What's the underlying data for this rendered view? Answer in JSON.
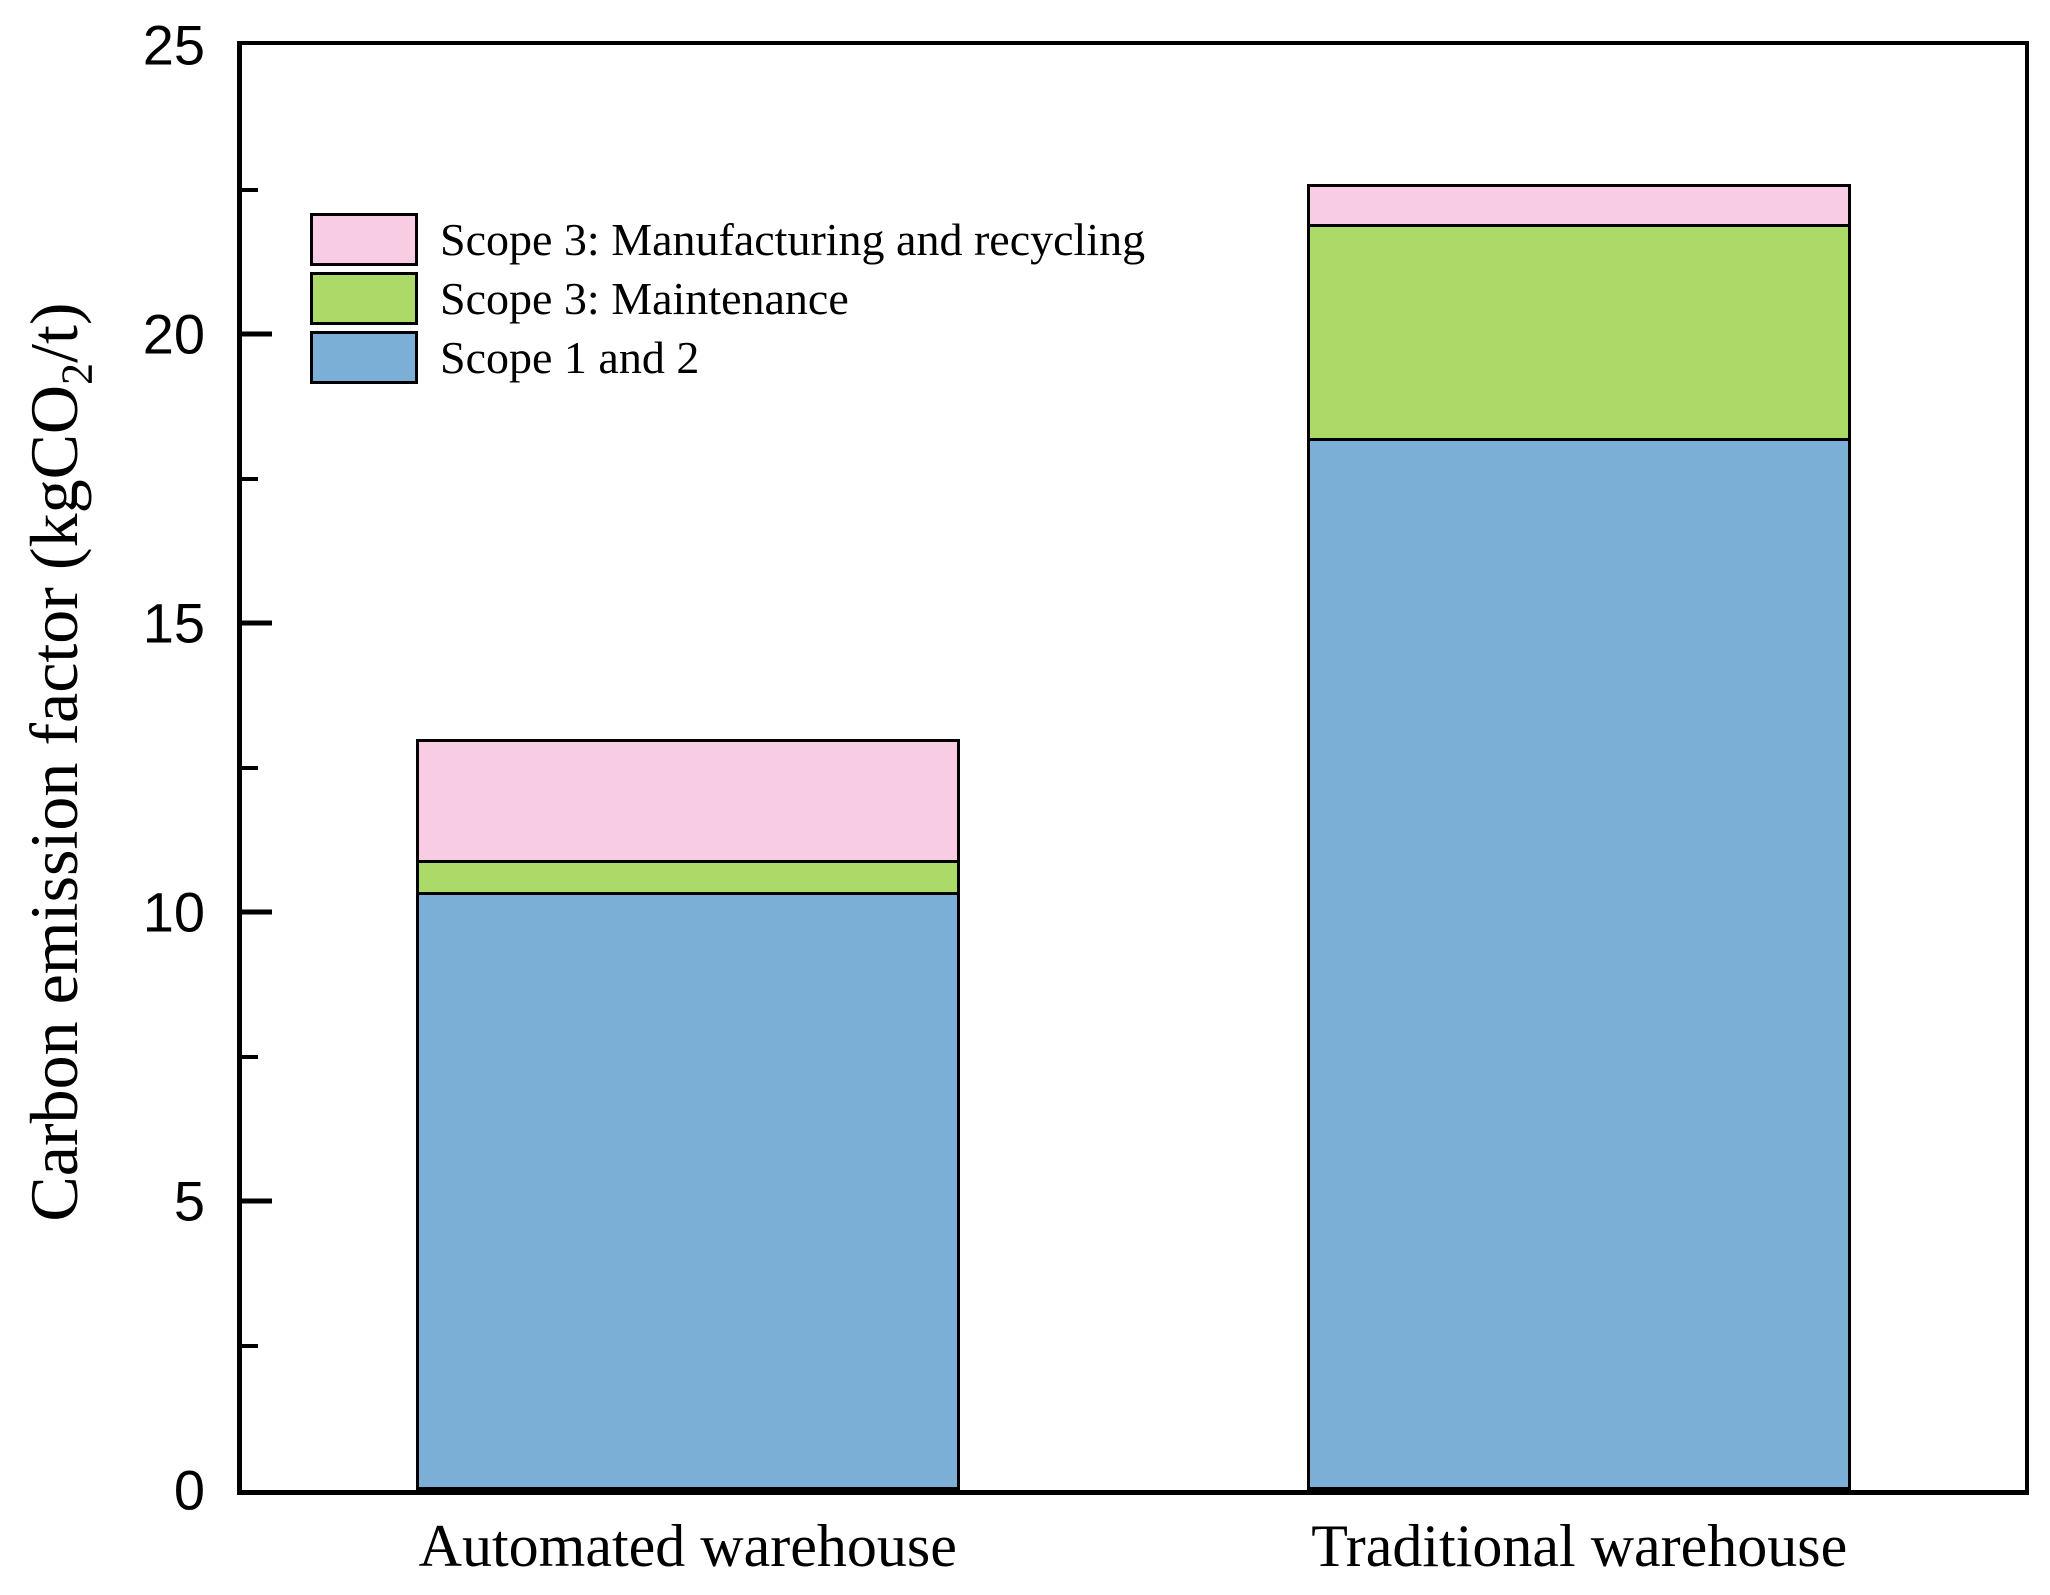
{
  "axis": {
    "y_title": {
      "pre": "Carbon emission factor (kgCO",
      "sub": "2",
      "post": "/t)"
    }
  },
  "chart_data": {
    "type": "bar",
    "stacked": true,
    "title": "",
    "xlabel": "",
    "ylabel": "Carbon emission factor (kgCO2/t)",
    "categories": [
      "Automated warehouse",
      "Traditional warehouse"
    ],
    "series": [
      {
        "name": "Scope 1 and 2",
        "color": "#7BAFD5",
        "values": [
          10.35,
          18.2
        ]
      },
      {
        "name": "Scope 3: Maintenance",
        "color": "#ABDA68",
        "values": [
          0.55,
          3.7
        ]
      },
      {
        "name": "Scope 3: Manufacturing and recycling",
        "color": "#F8CCE3",
        "values": [
          2.1,
          0.7
        ]
      }
    ],
    "stack_totals": [
      13.0,
      22.6
    ],
    "ylim": [
      0,
      25
    ],
    "yticks": [
      0,
      5,
      10,
      15,
      20,
      25
    ],
    "minor_tick_interval": 2.5,
    "tick_direction": "in",
    "grid": false,
    "frame": true,
    "axis_color": "#000000",
    "bar_width_frac": 0.305,
    "bar_centers_frac": [
      0.25,
      0.75
    ],
    "legend": {
      "position": "upper-left",
      "entries": [
        "Scope 3: Manufacturing and recycling",
        "Scope 3: Maintenance",
        "Scope 1 and 2"
      ]
    }
  }
}
